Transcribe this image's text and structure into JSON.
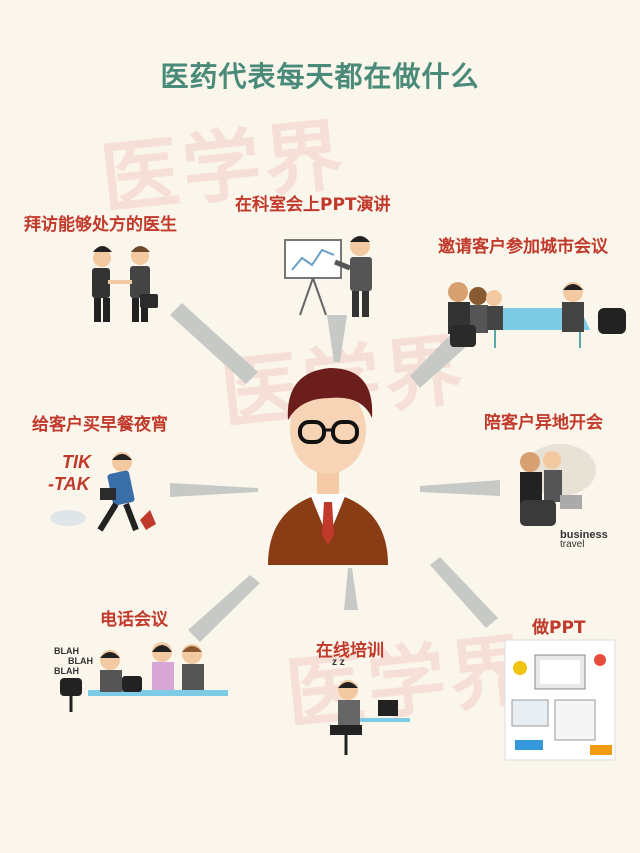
{
  "title": "医药代表每天都在做什么",
  "watermark": "医学界",
  "activities": [
    {
      "label": "拜访能够处方的医生"
    },
    {
      "label": "在科室会上PPT演讲"
    },
    {
      "label": "邀请客户参加城市会议"
    },
    {
      "label": "给客户买早餐夜宵"
    },
    {
      "label": "陪客户异地开会"
    },
    {
      "label": "电话会议"
    },
    {
      "label": "在线培训"
    },
    {
      "label": "做PPT"
    }
  ],
  "sticker_texts": {
    "tik": "TIK",
    "tak": "-TAK",
    "business": "business",
    "travel": "travel",
    "blah1": "BLAH",
    "blah2": "BLAH",
    "blah3": "BLAH",
    "zz": "z z"
  },
  "colors": {
    "title": "#4a8a78",
    "label": "#c0392b",
    "arrow": "#c7c9c6",
    "suit": "#8a3d14",
    "background": "#fbf6ec"
  }
}
